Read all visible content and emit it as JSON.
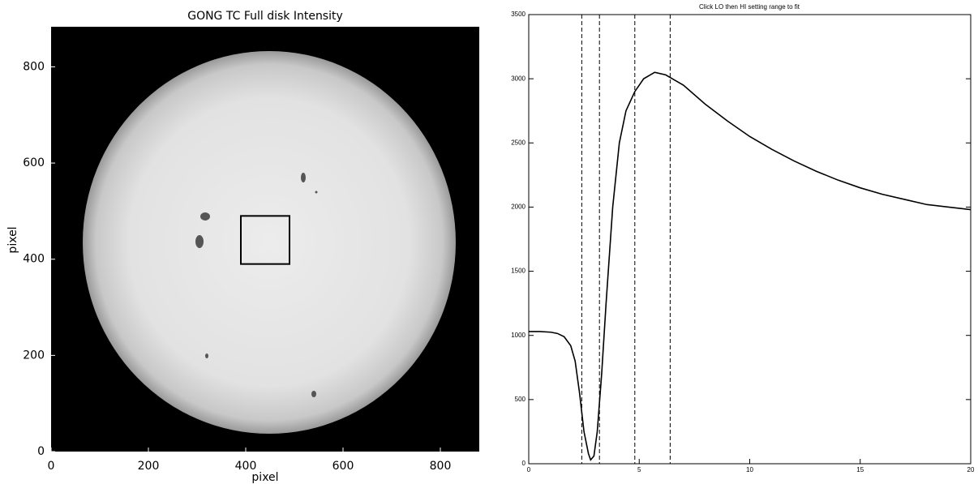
{
  "chart_data": [
    {
      "type": "image",
      "title": "GONG TC Full disk Intensity",
      "x_label": "pixel",
      "y_label": "pixel",
      "xlim": [
        0,
        880
      ],
      "ylim": [
        0,
        880
      ],
      "xticks": [
        0,
        200,
        400,
        600,
        800
      ],
      "yticks": [
        0,
        200,
        400,
        600,
        800
      ],
      "box": {
        "x": [
          390,
          490
        ],
        "y": [
          390,
          490
        ]
      }
    },
    {
      "type": "line",
      "title": "Click LO then HI setting range to fit",
      "x": [
        0,
        0.5,
        1,
        1.3,
        1.6,
        1.9,
        2.1,
        2.3,
        2.5,
        2.7,
        2.8,
        2.95,
        3.1,
        3.3,
        3.5,
        3.8,
        4.1,
        4.4,
        4.8,
        5.2,
        5.7,
        6.2,
        6.5,
        7,
        8,
        9,
        10,
        11,
        12,
        13,
        14,
        15,
        16,
        17,
        18,
        19,
        20
      ],
      "values": [
        1030,
        1030,
        1025,
        1015,
        990,
        920,
        800,
        550,
        250,
        80,
        30,
        60,
        250,
        700,
        1250,
        2000,
        2500,
        2750,
        2900,
        3000,
        3050,
        3030,
        3000,
        2950,
        2800,
        2670,
        2550,
        2450,
        2360,
        2280,
        2210,
        2150,
        2100,
        2060,
        2020,
        2000,
        1980
      ],
      "color": "#000000",
      "vlines": [
        2.4,
        3.2,
        4.8,
        6.4
      ],
      "xlim": [
        0,
        20
      ],
      "ylim": [
        0,
        3500
      ],
      "xticks": [
        0,
        5,
        10,
        15,
        20
      ],
      "yticks": [
        0,
        500,
        1000,
        1500,
        2000,
        2500,
        3000,
        3500
      ]
    }
  ]
}
